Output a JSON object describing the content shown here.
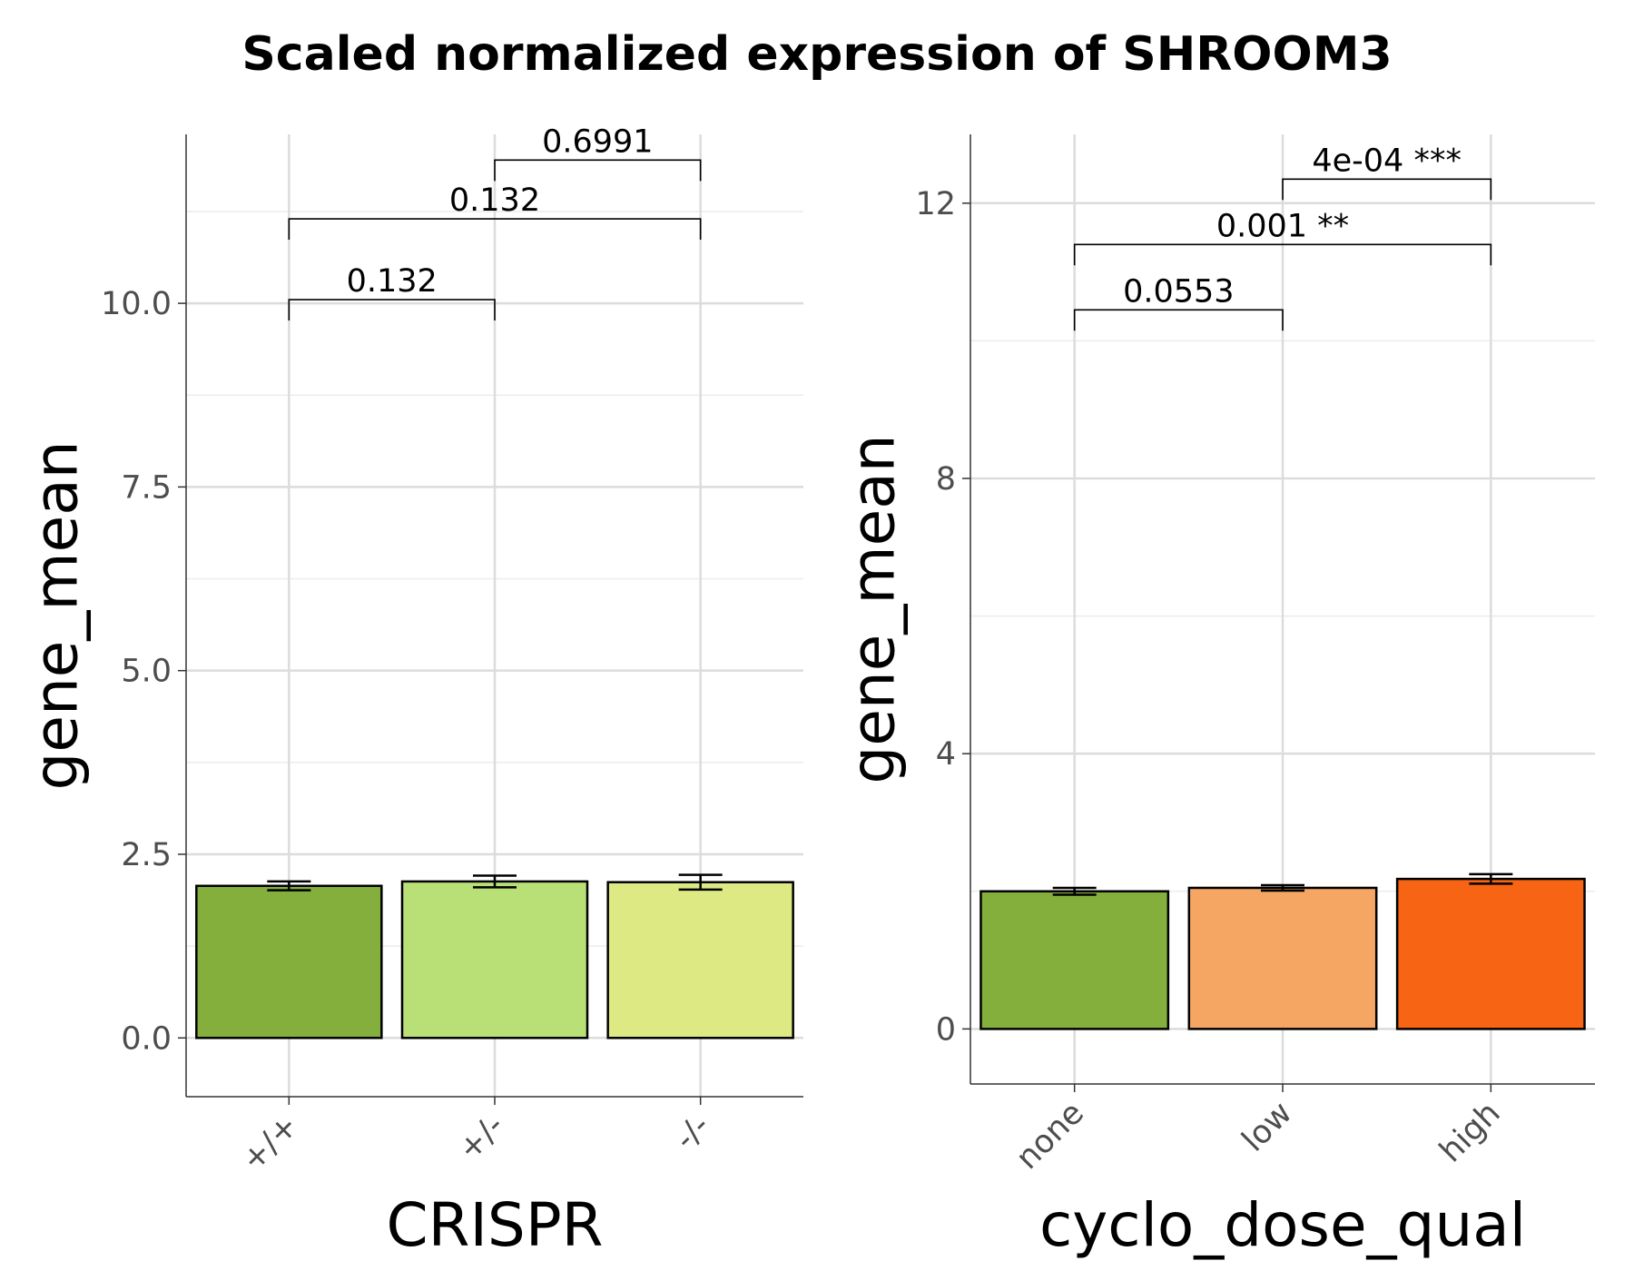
{
  "figure": {
    "title": "Scaled normalized expression of SHROOM3"
  },
  "colors": {
    "grid_major": "#dcdcdc",
    "grid_minor": "#ececec",
    "axis": "#333333",
    "bar_outline": "#000000"
  },
  "chart_data": [
    {
      "type": "bar",
      "xlabel": "CRISPR",
      "ylabel": "gene_mean",
      "categories": [
        "+/+",
        "+/-",
        "-/-"
      ],
      "values": [
        2.07,
        2.13,
        2.12
      ],
      "errors": [
        0.06,
        0.08,
        0.1
      ],
      "colors": [
        "#84AF3C",
        "#B8E077",
        "#DDE982"
      ],
      "ylim": [
        -0.8,
        12.3
      ],
      "yticks": [
        0,
        2.5,
        5,
        7.5,
        10
      ],
      "ytick_labels": [
        "0.0",
        "2.5",
        "5.0",
        "7.5",
        "10.0"
      ],
      "grid": true,
      "comparisons": [
        {
          "from": 0,
          "to": 1,
          "y": 10.05,
          "label": "0.132"
        },
        {
          "from": 0,
          "to": 2,
          "y": 11.15,
          "label": "0.132"
        },
        {
          "from": 1,
          "to": 2,
          "y": 11.95,
          "label": "0.6991"
        }
      ]
    },
    {
      "type": "bar",
      "xlabel": "cyclo_dose_qual",
      "ylabel": "gene_mean",
      "categories": [
        "none",
        "low",
        "high"
      ],
      "values": [
        2.0,
        2.05,
        2.18
      ],
      "errors": [
        0.05,
        0.04,
        0.07
      ],
      "colors": [
        "#84AF3C",
        "#F5A663",
        "#F76514"
      ],
      "ylim": [
        -0.8,
        13.0
      ],
      "yticks": [
        0,
        4,
        8,
        12
      ],
      "ytick_labels": [
        "0",
        "4",
        "8",
        "12"
      ],
      "grid": true,
      "comparisons": [
        {
          "from": 0,
          "to": 1,
          "y": 10.45,
          "label": "0.0553"
        },
        {
          "from": 0,
          "to": 2,
          "y": 11.4,
          "label": "0.001 **"
        },
        {
          "from": 1,
          "to": 2,
          "y": 12.35,
          "label": "4e-04 ***"
        }
      ]
    }
  ]
}
